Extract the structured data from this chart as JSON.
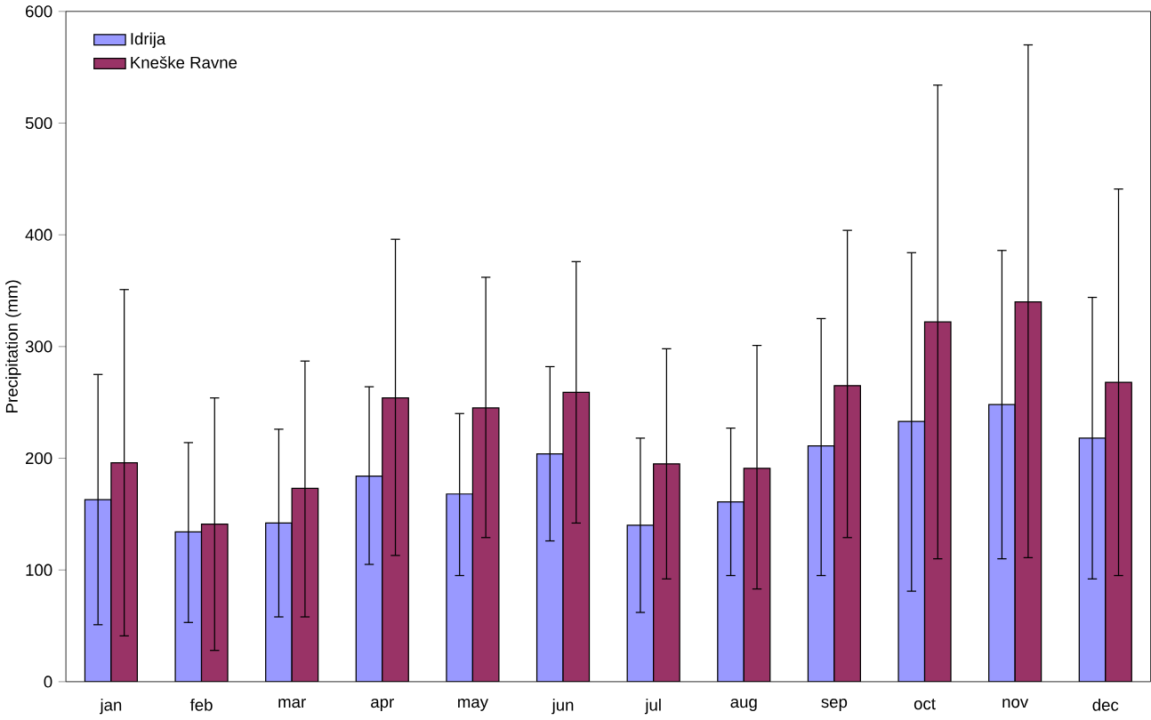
{
  "chart_data": {
    "type": "bar",
    "ylabel": "Precipitation (mm)",
    "categories": [
      "jan",
      "feb",
      "mar",
      "apr",
      "may",
      "jun",
      "jul",
      "aug",
      "sep",
      "oct",
      "nov",
      "dec"
    ],
    "series": [
      {
        "name": "Idrija",
        "color": "#9999ff",
        "values": [
          163,
          134,
          142,
          184,
          168,
          204,
          140,
          161,
          211,
          233,
          248,
          218
        ],
        "errors": [
          [
            51,
            275
          ],
          [
            53,
            214
          ],
          [
            58,
            226
          ],
          [
            105,
            264
          ],
          [
            95,
            240
          ],
          [
            126,
            282
          ],
          [
            62,
            218
          ],
          [
            95,
            227
          ],
          [
            95,
            325
          ],
          [
            81,
            384
          ],
          [
            110,
            386
          ],
          [
            92,
            344
          ]
        ]
      },
      {
        "name": "Kneške Ravne",
        "color": "#993366",
        "values": [
          196,
          141,
          173,
          254,
          245,
          259,
          195,
          191,
          265,
          322,
          340,
          268
        ],
        "errors": [
          [
            41,
            351
          ],
          [
            28,
            254
          ],
          [
            58,
            287
          ],
          [
            113,
            396
          ],
          [
            129,
            362
          ],
          [
            142,
            376
          ],
          [
            92,
            298
          ],
          [
            83,
            301
          ],
          [
            129,
            404
          ],
          [
            110,
            534
          ],
          [
            111,
            570
          ],
          [
            95,
            441
          ]
        ]
      }
    ],
    "ylim": [
      0,
      600
    ],
    "yticks": [
      0,
      100,
      200,
      300,
      400,
      500,
      600
    ],
    "legend": "top left"
  }
}
